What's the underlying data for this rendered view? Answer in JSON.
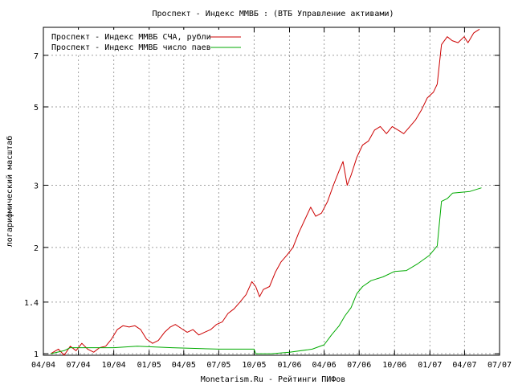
{
  "chart_data": {
    "type": "line",
    "title": "Проспект - Индекс ММВБ : (ВТБ Управление активами)",
    "xlabel": "Monetarism.Ru - Рейтинги ПИФов",
    "ylabel": "логарифмический масштаб",
    "log_scale_y": true,
    "grid": true,
    "legend_position": "top-left",
    "x_ticks": [
      "04/04",
      "07/04",
      "10/04",
      "01/05",
      "04/05",
      "07/05",
      "10/05",
      "01/06",
      "04/06",
      "07/06",
      "10/06",
      "01/07",
      "04/07",
      "07/07"
    ],
    "y_ticks": [
      "1",
      "1.4",
      "2",
      "3",
      "5",
      "7"
    ],
    "ylim": [
      0.99,
      8.4
    ],
    "x_range": [
      "2004-04-01",
      "2007-07-01"
    ],
    "series": [
      {
        "name": "Проспект - Индекс ММВБ СЧА, рубли",
        "color": "#cc0000",
        "points": [
          [
            "2004-04-20",
            1.0
          ],
          [
            "2004-05-10",
            1.03
          ],
          [
            "2004-05-25",
            0.99
          ],
          [
            "2004-06-10",
            1.05
          ],
          [
            "2004-06-25",
            1.02
          ],
          [
            "2004-07-10",
            1.07
          ],
          [
            "2004-07-25",
            1.03
          ],
          [
            "2004-08-10",
            1.01
          ],
          [
            "2004-08-25",
            1.04
          ],
          [
            "2004-09-10",
            1.05
          ],
          [
            "2004-09-25",
            1.1
          ],
          [
            "2004-10-10",
            1.17
          ],
          [
            "2004-10-25",
            1.2
          ],
          [
            "2004-11-10",
            1.19
          ],
          [
            "2004-11-25",
            1.2
          ],
          [
            "2004-12-10",
            1.17
          ],
          [
            "2004-12-25",
            1.1
          ],
          [
            "2005-01-10",
            1.07
          ],
          [
            "2005-01-25",
            1.09
          ],
          [
            "2005-02-10",
            1.15
          ],
          [
            "2005-02-25",
            1.19
          ],
          [
            "2005-03-10",
            1.21
          ],
          [
            "2005-03-25",
            1.18
          ],
          [
            "2005-04-10",
            1.15
          ],
          [
            "2005-04-25",
            1.17
          ],
          [
            "2005-05-10",
            1.13
          ],
          [
            "2005-05-25",
            1.15
          ],
          [
            "2005-06-10",
            1.17
          ],
          [
            "2005-06-25",
            1.21
          ],
          [
            "2005-07-10",
            1.23
          ],
          [
            "2005-07-25",
            1.3
          ],
          [
            "2005-08-10",
            1.34
          ],
          [
            "2005-08-25",
            1.4
          ],
          [
            "2005-09-10",
            1.47
          ],
          [
            "2005-09-25",
            1.6
          ],
          [
            "2005-10-05",
            1.55
          ],
          [
            "2005-10-15",
            1.45
          ],
          [
            "2005-10-25",
            1.52
          ],
          [
            "2005-11-10",
            1.55
          ],
          [
            "2005-11-25",
            1.7
          ],
          [
            "2005-12-10",
            1.82
          ],
          [
            "2005-12-25",
            1.9
          ],
          [
            "2006-01-10",
            2.0
          ],
          [
            "2006-01-25",
            2.2
          ],
          [
            "2006-02-10",
            2.4
          ],
          [
            "2006-02-25",
            2.6
          ],
          [
            "2006-03-10",
            2.45
          ],
          [
            "2006-03-25",
            2.5
          ],
          [
            "2006-04-10",
            2.7
          ],
          [
            "2006-04-25",
            3.0
          ],
          [
            "2006-05-10",
            3.3
          ],
          [
            "2006-05-20",
            3.5
          ],
          [
            "2006-05-31",
            3.0
          ],
          [
            "2006-06-10",
            3.2
          ],
          [
            "2006-06-25",
            3.6
          ],
          [
            "2006-07-10",
            3.9
          ],
          [
            "2006-07-25",
            4.0
          ],
          [
            "2006-08-10",
            4.3
          ],
          [
            "2006-08-25",
            4.4
          ],
          [
            "2006-09-10",
            4.2
          ],
          [
            "2006-09-25",
            4.4
          ],
          [
            "2006-10-10",
            4.3
          ],
          [
            "2006-10-25",
            4.2
          ],
          [
            "2006-11-10",
            4.4
          ],
          [
            "2006-11-25",
            4.6
          ],
          [
            "2006-12-10",
            4.9
          ],
          [
            "2006-12-25",
            5.3
          ],
          [
            "2007-01-10",
            5.5
          ],
          [
            "2007-01-20",
            5.8
          ],
          [
            "2007-01-31",
            7.5
          ],
          [
            "2007-02-15",
            7.9
          ],
          [
            "2007-02-28",
            7.7
          ],
          [
            "2007-03-15",
            7.6
          ],
          [
            "2007-03-31",
            7.9
          ],
          [
            "2007-04-10",
            7.6
          ],
          [
            "2007-04-25",
            8.1
          ],
          [
            "2007-05-10",
            8.3
          ]
        ]
      },
      {
        "name": "Проспект - Индекс ММВБ число паев",
        "color": "#00aa00",
        "points": [
          [
            "2004-04-20",
            1.0
          ],
          [
            "2004-05-25",
            1.02
          ],
          [
            "2004-06-10",
            1.04
          ],
          [
            "2004-07-10",
            1.04
          ],
          [
            "2004-10-01",
            1.04
          ],
          [
            "2004-12-01",
            1.05
          ],
          [
            "2005-03-01",
            1.04
          ],
          [
            "2005-07-01",
            1.03
          ],
          [
            "2005-10-01",
            1.03
          ],
          [
            "2005-10-05",
            1.0
          ],
          [
            "2005-11-15",
            1.0
          ],
          [
            "2006-01-01",
            1.01
          ],
          [
            "2006-03-01",
            1.03
          ],
          [
            "2006-04-01",
            1.06
          ],
          [
            "2006-04-20",
            1.13
          ],
          [
            "2006-05-10",
            1.2
          ],
          [
            "2006-05-25",
            1.28
          ],
          [
            "2006-06-10",
            1.35
          ],
          [
            "2006-06-25",
            1.48
          ],
          [
            "2006-07-10",
            1.55
          ],
          [
            "2006-08-01",
            1.61
          ],
          [
            "2006-09-01",
            1.65
          ],
          [
            "2006-10-01",
            1.71
          ],
          [
            "2006-11-01",
            1.72
          ],
          [
            "2006-12-01",
            1.8
          ],
          [
            "2006-12-31",
            1.9
          ],
          [
            "2007-01-20",
            2.02
          ],
          [
            "2007-01-31",
            2.7
          ],
          [
            "2007-02-15",
            2.75
          ],
          [
            "2007-03-01",
            2.85
          ],
          [
            "2007-04-15",
            2.88
          ],
          [
            "2007-05-15",
            2.95
          ]
        ]
      }
    ]
  }
}
